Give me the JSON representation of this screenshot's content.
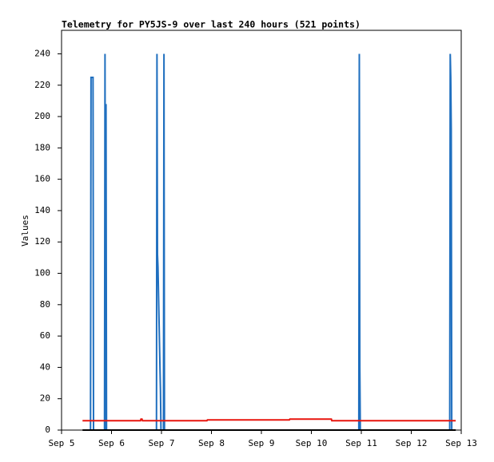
{
  "chart_data": {
    "type": "line",
    "title": "Telemetry for PY5JS-9 over last 240 hours (521 points)",
    "y_label": "Values",
    "xlim": [
      5,
      13
    ],
    "ylim": [
      0,
      255
    ],
    "xticks": [
      {
        "value": 5,
        "label": "Sep 5"
      },
      {
        "value": 6,
        "label": "Sep 6"
      },
      {
        "value": 7,
        "label": "Sep 7"
      },
      {
        "value": 8,
        "label": "Sep 8"
      },
      {
        "value": 9,
        "label": "Sep 9"
      },
      {
        "value": 10,
        "label": "Sep 10"
      },
      {
        "value": 11,
        "label": "Sep 11"
      },
      {
        "value": 12,
        "label": "Sep 12"
      },
      {
        "value": 13,
        "label": "Sep 13"
      }
    ],
    "yticks": [
      0,
      20,
      40,
      60,
      80,
      100,
      120,
      140,
      160,
      180,
      200,
      220,
      240
    ],
    "grid": false,
    "series": [
      {
        "color": "#1f6fbf",
        "x": [
          5.58,
          5.59,
          5.61,
          5.63,
          5.64,
          5.86,
          5.87,
          5.88,
          5.89,
          5.9,
          6.9,
          6.91,
          6.92,
          6.93,
          6.94,
          6.95,
          6.96,
          6.97,
          6.98,
          6.99,
          7.04,
          7.05,
          7.06,
          10.95,
          10.96,
          10.97,
          10.98,
          12.77,
          12.78,
          12.79,
          12.8,
          12.81
        ],
        "values": [
          0,
          225,
          225,
          225,
          0,
          0,
          240,
          0,
          208,
          0,
          0,
          240,
          112,
          104,
          88,
          72,
          56,
          40,
          25,
          0,
          0,
          240,
          0,
          0,
          240,
          40,
          0,
          0,
          240,
          225,
          192,
          0
        ]
      },
      {
        "color": "#e8150d",
        "x": [
          5.42,
          6.58,
          6.59,
          6.61,
          6.62,
          7.91,
          7.92,
          9.56,
          9.57,
          10.4,
          10.41,
          12.89
        ],
        "values": [
          6,
          6,
          7,
          7,
          6,
          6,
          6.5,
          6.5,
          7,
          7,
          6,
          6
        ]
      },
      {
        "color": "#000000",
        "x": [
          5.42,
          12.89
        ],
        "values": [
          0,
          0
        ]
      }
    ]
  }
}
